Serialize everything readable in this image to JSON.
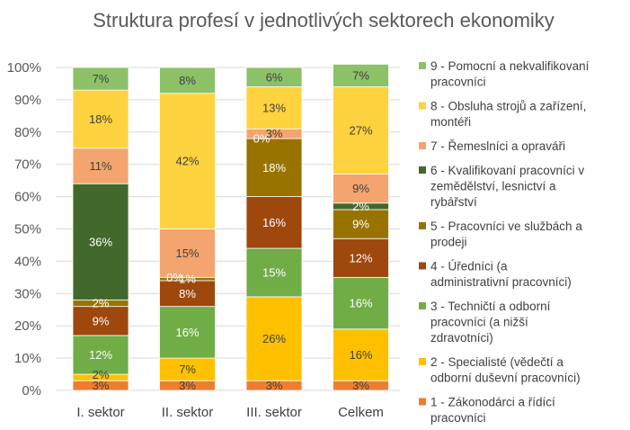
{
  "chart_data": {
    "type": "bar",
    "stacked": true,
    "percent": true,
    "title": "Struktura profesí v jednotlivých sektorech ekonomiky",
    "xlabel": "",
    "ylabel": "",
    "ylim": [
      0,
      100
    ],
    "yticks": [
      "0%",
      "10%",
      "20%",
      "30%",
      "40%",
      "50%",
      "60%",
      "70%",
      "80%",
      "90%",
      "100%"
    ],
    "grid": true,
    "legend_position": "right",
    "categories": [
      "I. sektor",
      "II. sektor",
      "III. sektor",
      "Celkem"
    ],
    "series": [
      {
        "name": "1 - Zákonodárci a řídící pracovníci",
        "color": "#ED7D31",
        "text_color": "#404040",
        "values": [
          3,
          3,
          3,
          3
        ],
        "labels": [
          "3%",
          "3%",
          "3%",
          "3%"
        ]
      },
      {
        "name": "2 - Specialisté (vědečtí a odborní duševní pracovníci)",
        "color": "#FFC000",
        "text_color": "#404040",
        "values": [
          2,
          7,
          26,
          16
        ],
        "labels": [
          "2%",
          "7%",
          "26%",
          "16%"
        ]
      },
      {
        "name": "3 - Techničtí a odborní pracovníci (a nižší zdravotníci)",
        "color": "#70AD47",
        "text_color": "#ffffff",
        "values": [
          12,
          16,
          15,
          16
        ],
        "labels": [
          "12%",
          "16%",
          "15%",
          "16%"
        ]
      },
      {
        "name": "4 - Úředníci (a administrativní pracovníci)",
        "color": "#9E480E",
        "text_color": "#ffffff",
        "values": [
          9,
          8,
          16,
          12
        ],
        "labels": [
          "9%",
          "8%",
          "16%",
          "12%"
        ]
      },
      {
        "name": "5 - Pracovníci ve službách a prodeji",
        "color": "#997300",
        "text_color": "#ffffff",
        "values": [
          2,
          1,
          18,
          9
        ],
        "labels": [
          "2%",
          "1%",
          "18%",
          "9%"
        ]
      },
      {
        "name": "6 - Kvalifikovaní pracovníci v zemědělství, lesnictví a rybářství",
        "color": "#43682B",
        "text_color": "#ffffff",
        "values": [
          36,
          0,
          0,
          2
        ],
        "labels": [
          "36%",
          "0%",
          "",
          "2%"
        ]
      },
      {
        "name": "7 - Řemeslníci a opraváři",
        "color": "#F4A46E",
        "text_color": "#404040",
        "values": [
          11,
          15,
          3,
          9
        ],
        "labels": [
          "11%",
          "15%",
          "3%",
          "9%"
        ]
      },
      {
        "name": "8 - Obsluha strojů a zařízení, montéři",
        "color": "#FFD23F",
        "text_color": "#404040",
        "values": [
          18,
          42,
          13,
          27
        ],
        "labels": [
          "18%",
          "42%",
          "13%",
          "27%"
        ]
      },
      {
        "name": "9 - Pomocní a nekvalifikovaní pracovníci",
        "color": "#8CC168",
        "text_color": "#404040",
        "values": [
          7,
          8,
          6,
          7
        ],
        "labels": [
          "7%",
          "8%",
          "6%",
          "7%"
        ]
      }
    ],
    "extra_labels": [
      {
        "category": "III. sektor",
        "series": "6 - Kvalifikovaní pracovníci v zemědělství, lesnictví a rybářství",
        "label": "0%"
      }
    ]
  }
}
